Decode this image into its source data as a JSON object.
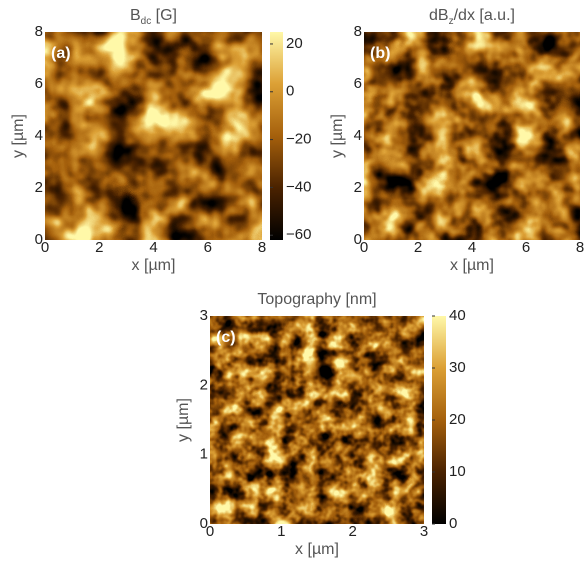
{
  "chart_data": [
    {
      "type": "heatmap",
      "title": [
        "B",
        "dc",
        " [G]"
      ],
      "panel_label": "(a)",
      "xlabel": "x [µm]",
      "ylabel": "y [µm]",
      "xlim": [
        0,
        8
      ],
      "ylim": [
        0,
        8
      ],
      "xticks": [
        0,
        2,
        4,
        6,
        8
      ],
      "yticks": [
        0,
        2,
        4,
        6,
        8
      ],
      "colorbar": {
        "clim": [
          -62,
          25
        ],
        "ticks": [
          {
            "value": -60,
            "label": "−60"
          },
          {
            "value": -40,
            "label": "−40"
          },
          {
            "value": -20,
            "label": "−20"
          },
          0,
          20
        ]
      },
      "colormap": [
        "#000000",
        "#4a2200",
        "#a5600c",
        "#dca035",
        "#fff8a8"
      ]
    },
    {
      "type": "heatmap",
      "title": [
        "dB",
        "z",
        "/dx [a.u.]"
      ],
      "panel_label": "(b)",
      "xlabel": "x [µm]",
      "ylabel": "y [µm]",
      "xlim": [
        0,
        8
      ],
      "ylim": [
        0,
        8
      ],
      "xticks": [
        0,
        2,
        4,
        6,
        8
      ],
      "yticks": [
        0,
        2,
        4,
        6,
        8
      ],
      "colormap": [
        "#000000",
        "#4a2200",
        "#a5600c",
        "#dca035",
        "#fff8a8"
      ]
    },
    {
      "type": "heatmap",
      "title": [
        "Topography [nm]"
      ],
      "panel_label": "(c)",
      "xlabel": "x [µm]",
      "ylabel": "y [µm]",
      "xlim": [
        0,
        3
      ],
      "ylim": [
        0,
        3
      ],
      "xticks": [
        0,
        1,
        2,
        3
      ],
      "yticks": [
        0,
        1,
        2,
        3
      ],
      "colorbar": {
        "clim": [
          0,
          40
        ],
        "ticks": [
          0,
          10,
          20,
          30,
          40
        ]
      },
      "colormap": [
        "#000000",
        "#4a2200",
        "#a5600c",
        "#dca035",
        "#fff8a8"
      ]
    }
  ]
}
